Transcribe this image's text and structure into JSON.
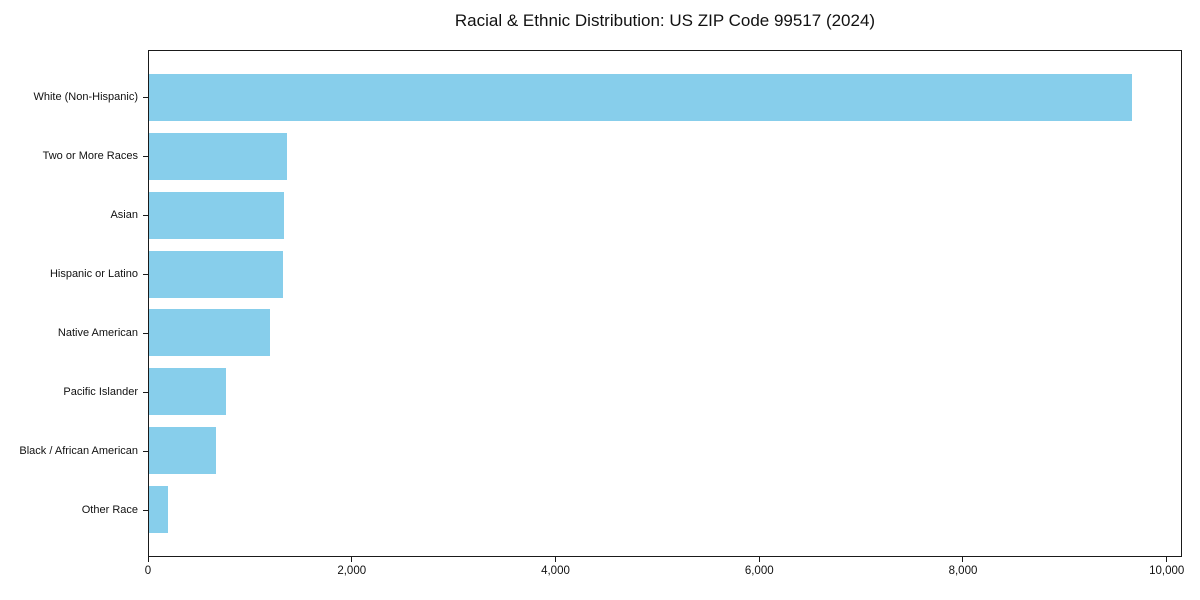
{
  "figure": {
    "background": "#ffffff"
  },
  "chart_data": {
    "type": "bar",
    "orientation": "horizontal",
    "title": "Racial & Ethnic Distribution: US ZIP Code 99517 (2024)",
    "categories": [
      "White (Non-Hispanic)",
      "Two or More Races",
      "Asian",
      "Hispanic or Latino",
      "Native American",
      "Pacific Islander",
      "Black / African American",
      "Other Race"
    ],
    "values": [
      9670,
      1360,
      1330,
      1320,
      1190,
      760,
      660,
      185
    ],
    "xlabel": "",
    "ylabel": "",
    "xlim": [
      0,
      10150
    ],
    "x_ticks": [
      0,
      2000,
      4000,
      6000,
      8000,
      10000
    ],
    "x_tick_labels": [
      "0",
      "2,000",
      "4,000",
      "6,000",
      "8,000",
      "10,000"
    ],
    "bar_color": "#87CEEB",
    "axis_color": "#1a1a1a",
    "text_color": "#111111",
    "grid": false,
    "legend": null
  }
}
